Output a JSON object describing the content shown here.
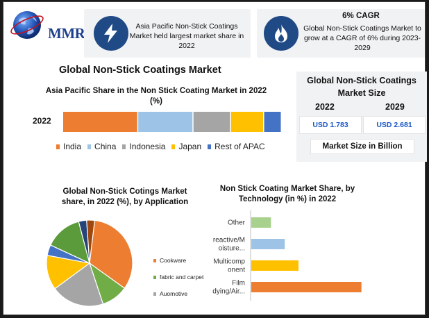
{
  "logo": {
    "text": "MMR"
  },
  "highlights": [
    {
      "icon": "lightning-bolt-icon",
      "text": "Asia Pacific Non-Stick Coatings Market held largest market share in 2022"
    },
    {
      "icon": "flame-icon",
      "title": "6% CAGR",
      "text": "Global Non-Stick Coatings Market to grow at a CAGR of 6% during 2023-2029"
    }
  ],
  "main_title": "Global Non-Stick Coatings Market",
  "market_size": {
    "title": "Global Non-Stick Coatings Market Size",
    "years": [
      "2022",
      "2029"
    ],
    "values": [
      "USD 1.783",
      "USD 2.681"
    ],
    "unit_label": "Market Size in Billion"
  },
  "colors": {
    "india": "#ed7d31",
    "china": "#9dc3e6",
    "indonesia": "#a5a5a5",
    "japan": "#ffc000",
    "rest": "#4472c4",
    "pie_cookware": "#ed7d31",
    "pie_fabric": "#70ad47",
    "pie_automotive": "#a5a5a5",
    "pie_yellow": "#ffc000",
    "pie_blue": "#4472c4",
    "pie_green": "#5b9b3c",
    "pie_navy": "#264478",
    "pie_brown": "#9e480e",
    "other": "#a9d18e",
    "reactive": "#9dc3e6",
    "multicomponent": "#ffc000",
    "film": "#ed7d31",
    "badge": "#1f4a86",
    "value_text": "#1b58c6"
  },
  "chart_data": [
    {
      "type": "bar",
      "orientation": "horizontal-stacked",
      "title": "Asia Pacific Share in the Non Stick Coating Market in 2022 (%)",
      "categories": [
        "2022"
      ],
      "series": [
        {
          "name": "India",
          "values": [
            34
          ]
        },
        {
          "name": "China",
          "values": [
            25
          ]
        },
        {
          "name": "Indonesia",
          "values": [
            17
          ]
        },
        {
          "name": "Japan",
          "values": [
            15
          ]
        },
        {
          "name": "Rest of APAC",
          "values": [
            8
          ]
        }
      ],
      "legend_position": "bottom"
    },
    {
      "type": "pie",
      "title": "Global Non-Stick Cotings Market share, in 2022 (%), by Application",
      "slices": [
        {
          "label": "Cookware",
          "value": 33,
          "color_key": "pie_cookware"
        },
        {
          "label": "fabric and carpet",
          "value": 10,
          "color_key": "pie_fabric"
        },
        {
          "label": "Auomotive",
          "value": 20,
          "color_key": "pie_automotive"
        },
        {
          "label": "",
          "value": 13,
          "color_key": "pie_yellow"
        },
        {
          "label": "",
          "value": 4,
          "color_key": "pie_blue"
        },
        {
          "label": "",
          "value": 14,
          "color_key": "pie_green"
        },
        {
          "label": "",
          "value": 3,
          "color_key": "pie_navy"
        },
        {
          "label": "",
          "value": 3,
          "color_key": "pie_brown"
        }
      ],
      "legend": [
        "Cookware",
        "fabric and carpet",
        "Auomotive"
      ],
      "legend_position": "right"
    },
    {
      "type": "bar",
      "orientation": "horizontal",
      "title": "Non Stick Coating Market Share, by Technology (in %) in 2022",
      "categories": [
        "Other",
        "reactive/Moisture...",
        "Multicomponent",
        "Film dying/Air..."
      ],
      "category_labels": [
        [
          "Other"
        ],
        [
          "reactive/M",
          "oisture..."
        ],
        [
          "Multicomp",
          "onent"
        ],
        [
          "Film",
          "dying/Air..."
        ]
      ],
      "values": [
        10,
        17,
        24,
        56
      ],
      "xlim": [
        0,
        60
      ]
    }
  ]
}
